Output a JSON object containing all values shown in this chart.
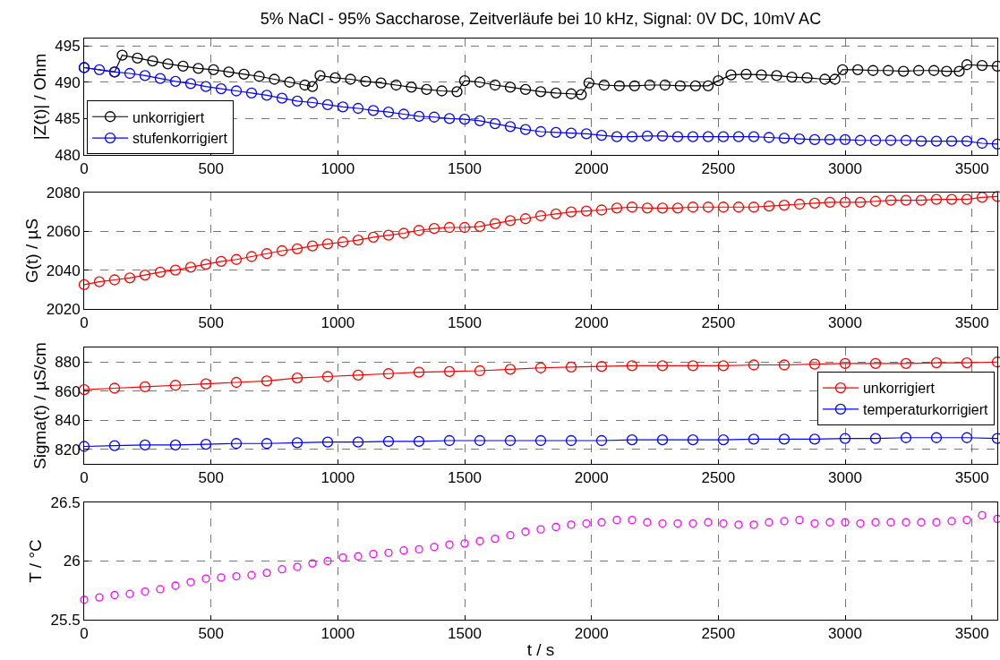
{
  "chart_data": [
    {
      "type": "line",
      "title": "5% NaCl - 95% Saccharose, Zeitverläufe bei 10 kHz, Signal: 0V DC, 10mV AC",
      "ylabel": "|Z(t)| / Ohm",
      "xlim": [
        0,
        3600
      ],
      "xticks": [
        0,
        500,
        1000,
        1500,
        2000,
        2500,
        3000,
        3500
      ],
      "ylim": [
        480,
        496
      ],
      "yticks": [
        480,
        485,
        490,
        495
      ],
      "grid": true,
      "legend": "bottom left",
      "marker": "circle",
      "line_style": "solid",
      "series": [
        {
          "name": "unkorrigiert",
          "color": "#000000",
          "x": [
            0,
            120,
            150,
            210,
            270,
            330,
            390,
            450,
            510,
            570,
            630,
            690,
            750,
            810,
            870,
            900,
            930,
            990,
            1050,
            1110,
            1170,
            1230,
            1290,
            1350,
            1410,
            1470,
            1500,
            1560,
            1620,
            1680,
            1740,
            1800,
            1860,
            1920,
            1960,
            1990,
            2050,
            2110,
            2170,
            2230,
            2290,
            2350,
            2410,
            2460,
            2500,
            2550,
            2610,
            2670,
            2730,
            2790,
            2850,
            2920,
            2960,
            2990,
            3050,
            3110,
            3170,
            3230,
            3290,
            3350,
            3400,
            3450,
            3480,
            3540,
            3600
          ],
          "values": [
            492.0,
            491.4,
            493.7,
            493.3,
            492.9,
            492.5,
            492.2,
            491.9,
            491.7,
            491.4,
            491.1,
            490.8,
            490.4,
            490.0,
            489.6,
            489.4,
            490.9,
            490.6,
            490.4,
            490.1,
            489.9,
            489.6,
            489.3,
            489.0,
            488.8,
            488.7,
            490.2,
            490.0,
            489.6,
            489.3,
            489.0,
            488.7,
            488.5,
            488.4,
            488.3,
            489.9,
            489.6,
            489.5,
            489.5,
            489.6,
            489.6,
            489.5,
            489.5,
            489.5,
            490.2,
            491.0,
            491.1,
            491.0,
            490.9,
            490.7,
            490.6,
            490.4,
            490.4,
            491.7,
            491.7,
            491.6,
            491.6,
            491.5,
            491.6,
            491.6,
            491.5,
            491.5,
            492.4,
            492.3,
            492.2
          ]
        },
        {
          "name": "stufenkorrigiert",
          "color": "#0000ff",
          "x": [
            0,
            60,
            120,
            180,
            240,
            300,
            360,
            420,
            480,
            540,
            600,
            660,
            720,
            780,
            840,
            900,
            960,
            1020,
            1080,
            1140,
            1200,
            1260,
            1320,
            1380,
            1440,
            1500,
            1560,
            1620,
            1680,
            1740,
            1800,
            1860,
            1920,
            1980,
            2040,
            2100,
            2160,
            2220,
            2280,
            2340,
            2400,
            2460,
            2520,
            2580,
            2640,
            2700,
            2760,
            2820,
            2880,
            2940,
            3000,
            3060,
            3120,
            3180,
            3240,
            3300,
            3360,
            3420,
            3480,
            3540,
            3600
          ],
          "values": [
            492.0,
            491.7,
            491.4,
            491.2,
            490.9,
            490.5,
            490.1,
            489.8,
            489.4,
            489.1,
            488.8,
            488.5,
            488.2,
            487.8,
            487.4,
            487.2,
            486.9,
            486.6,
            486.4,
            486.1,
            485.9,
            485.6,
            485.3,
            485.2,
            485.0,
            484.9,
            484.7,
            484.3,
            483.9,
            483.5,
            483.2,
            483.1,
            483.0,
            482.9,
            482.7,
            482.5,
            482.5,
            482.6,
            482.6,
            482.5,
            482.5,
            482.5,
            482.5,
            482.5,
            482.5,
            482.4,
            482.3,
            482.2,
            482.1,
            482.1,
            482.1,
            482.0,
            482.0,
            482.0,
            482.0,
            481.9,
            481.9,
            481.9,
            481.9,
            481.6,
            481.5
          ]
        }
      ]
    },
    {
      "type": "line",
      "ylabel": "G(t) / µS",
      "xlim": [
        0,
        3600
      ],
      "xticks": [
        0,
        500,
        1000,
        1500,
        2000,
        2500,
        3000,
        3500
      ],
      "ylim": [
        2020,
        2080
      ],
      "yticks": [
        2020,
        2040,
        2060,
        2080
      ],
      "grid": true,
      "marker": "circle",
      "line_style": "solid",
      "series": [
        {
          "color": "#ff0000",
          "x": [
            0,
            60,
            120,
            180,
            240,
            300,
            360,
            420,
            480,
            540,
            600,
            660,
            720,
            780,
            840,
            900,
            960,
            1020,
            1080,
            1140,
            1200,
            1260,
            1320,
            1380,
            1440,
            1500,
            1560,
            1620,
            1680,
            1740,
            1800,
            1860,
            1920,
            1980,
            2040,
            2100,
            2160,
            2220,
            2280,
            2340,
            2400,
            2460,
            2520,
            2580,
            2640,
            2700,
            2760,
            2820,
            2880,
            2940,
            3000,
            3060,
            3120,
            3180,
            3240,
            3300,
            3360,
            3420,
            3480,
            3540,
            3600
          ],
          "values": [
            2032.5,
            2034,
            2035,
            2036,
            2037.5,
            2039,
            2040,
            2041.5,
            2043,
            2044.5,
            2045.5,
            2047,
            2048.5,
            2050,
            2051,
            2052.5,
            2053.5,
            2054.5,
            2055.5,
            2057,
            2058,
            2059,
            2060.5,
            2061.5,
            2062,
            2062,
            2062.5,
            2064,
            2065.5,
            2066.5,
            2068,
            2069,
            2070,
            2070.5,
            2071,
            2072,
            2072.5,
            2072,
            2072,
            2072,
            2072.5,
            2072.5,
            2072.5,
            2072.5,
            2072.5,
            2073,
            2073.5,
            2074,
            2074.5,
            2075,
            2075,
            2075,
            2075.5,
            2076,
            2076,
            2076,
            2076.5,
            2076.5,
            2076.5,
            2077.5,
            2078
          ]
        }
      ]
    },
    {
      "type": "line",
      "ylabel": "Sigma(t) / µS/cm",
      "xlim": [
        0,
        3600
      ],
      "xticks": [
        0,
        500,
        1000,
        1500,
        2000,
        2500,
        3000,
        3500
      ],
      "ylim": [
        810,
        890
      ],
      "yticks": [
        820,
        840,
        860,
        880
      ],
      "grid": true,
      "legend": "right",
      "marker": "circle",
      "line_style": "solid",
      "series": [
        {
          "name": "unkorrigiert",
          "color": "#ff0000",
          "x": [
            0,
            120,
            240,
            360,
            480,
            600,
            720,
            840,
            960,
            1080,
            1200,
            1320,
            1440,
            1560,
            1680,
            1800,
            1920,
            2040,
            2160,
            2280,
            2400,
            2520,
            2640,
            2760,
            2880,
            3000,
            3120,
            3240,
            3360,
            3480,
            3600
          ],
          "values": [
            861,
            862,
            863,
            864,
            865,
            866,
            867,
            869,
            870,
            871,
            872,
            873,
            873.5,
            874,
            875,
            876,
            876.5,
            877,
            877.5,
            877.5,
            877.5,
            877.5,
            878,
            878,
            878.5,
            879,
            879,
            879,
            879.5,
            879.5,
            880
          ]
        },
        {
          "name": "temperaturkorrigiert",
          "color": "#0000ff",
          "x": [
            0,
            120,
            240,
            360,
            480,
            600,
            720,
            840,
            960,
            1080,
            1200,
            1320,
            1440,
            1560,
            1680,
            1800,
            1920,
            2040,
            2160,
            2280,
            2400,
            2520,
            2640,
            2760,
            2880,
            3000,
            3120,
            3240,
            3360,
            3480,
            3600
          ],
          "values": [
            822,
            822.5,
            823,
            823,
            823.5,
            824,
            824,
            824.5,
            825,
            825,
            825.5,
            825.5,
            826,
            826,
            826,
            826,
            826,
            826,
            826.5,
            826.5,
            826.5,
            826.5,
            827,
            827,
            827,
            827.5,
            827.5,
            828,
            828,
            828,
            827.5
          ]
        }
      ]
    },
    {
      "type": "scatter",
      "xlabel": "t / s",
      "ylabel": "T / °C",
      "xlim": [
        0,
        3600
      ],
      "xticks": [
        0,
        500,
        1000,
        1500,
        2000,
        2500,
        3000,
        3500
      ],
      "ylim": [
        25.5,
        26.5
      ],
      "yticks": [
        25.5,
        26,
        26.5
      ],
      "grid": true,
      "marker": "circle",
      "series": [
        {
          "color": "#ff00ff",
          "x": [
            0,
            60,
            120,
            180,
            240,
            300,
            360,
            420,
            480,
            540,
            600,
            660,
            720,
            780,
            840,
            900,
            960,
            1020,
            1080,
            1140,
            1200,
            1260,
            1320,
            1380,
            1440,
            1500,
            1560,
            1620,
            1680,
            1740,
            1800,
            1860,
            1920,
            1980,
            2040,
            2100,
            2160,
            2220,
            2280,
            2340,
            2400,
            2460,
            2520,
            2580,
            2640,
            2700,
            2760,
            2820,
            2880,
            2940,
            3000,
            3060,
            3120,
            3180,
            3240,
            3300,
            3360,
            3420,
            3480,
            3540,
            3600
          ],
          "values": [
            25.67,
            25.69,
            25.71,
            25.72,
            25.74,
            25.76,
            25.79,
            25.82,
            25.85,
            25.86,
            25.87,
            25.88,
            25.9,
            25.93,
            25.95,
            25.98,
            26.0,
            26.03,
            26.04,
            26.06,
            26.07,
            26.09,
            26.1,
            26.12,
            26.14,
            26.15,
            26.17,
            26.19,
            26.22,
            26.25,
            26.27,
            26.29,
            26.31,
            26.32,
            26.33,
            26.35,
            26.35,
            26.33,
            26.32,
            26.32,
            26.32,
            26.33,
            26.32,
            26.31,
            26.31,
            26.33,
            26.34,
            26.35,
            26.32,
            26.33,
            26.33,
            26.32,
            26.33,
            26.33,
            26.33,
            26.33,
            26.33,
            26.34,
            26.35,
            26.39,
            26.36
          ]
        }
      ]
    }
  ]
}
